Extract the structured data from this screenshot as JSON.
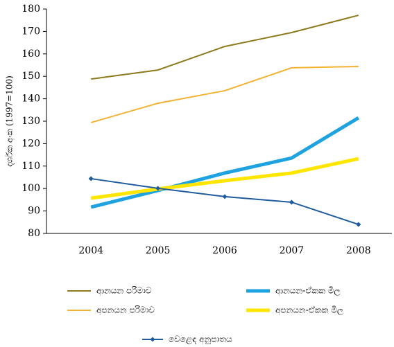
{
  "chart_data": {
    "type": "line",
    "y_label": "දර්ශක අංක (1997=100)",
    "categories": [
      "2004",
      "2005",
      "2006",
      "2007",
      "2008"
    ],
    "series": [
      {
        "name": "ආනයන පරිමාව",
        "color": "#8c7a1c",
        "values": [
          148.8,
          152.8,
          163.3,
          169.5,
          177.2
        ]
      },
      {
        "name": "අපනයන පරිමාව",
        "color": "#f2b233",
        "values": [
          129.4,
          138.0,
          143.6,
          153.8,
          154.4
        ]
      },
      {
        "name": "ආනයන-ඒකක මිල",
        "color": "#1ea3e0",
        "values": [
          91.7,
          99.1,
          106.9,
          113.6,
          131.5
        ]
      },
      {
        "name": "අපනයන-ඒකක මිල",
        "color": "#ffe600",
        "values": [
          95.7,
          99.8,
          103.5,
          106.9,
          113.3
        ]
      },
      {
        "name": "වෙළෙඳ අනුපාතය",
        "color": "#1f5c9e",
        "values": [
          104.4,
          100.1,
          96.4,
          93.9,
          84.0
        ]
      }
    ],
    "ylim": [
      80,
      180
    ],
    "yticks": [
      80,
      90,
      100,
      110,
      120,
      130,
      140,
      150,
      160,
      170,
      180
    ],
    "grid": false
  }
}
